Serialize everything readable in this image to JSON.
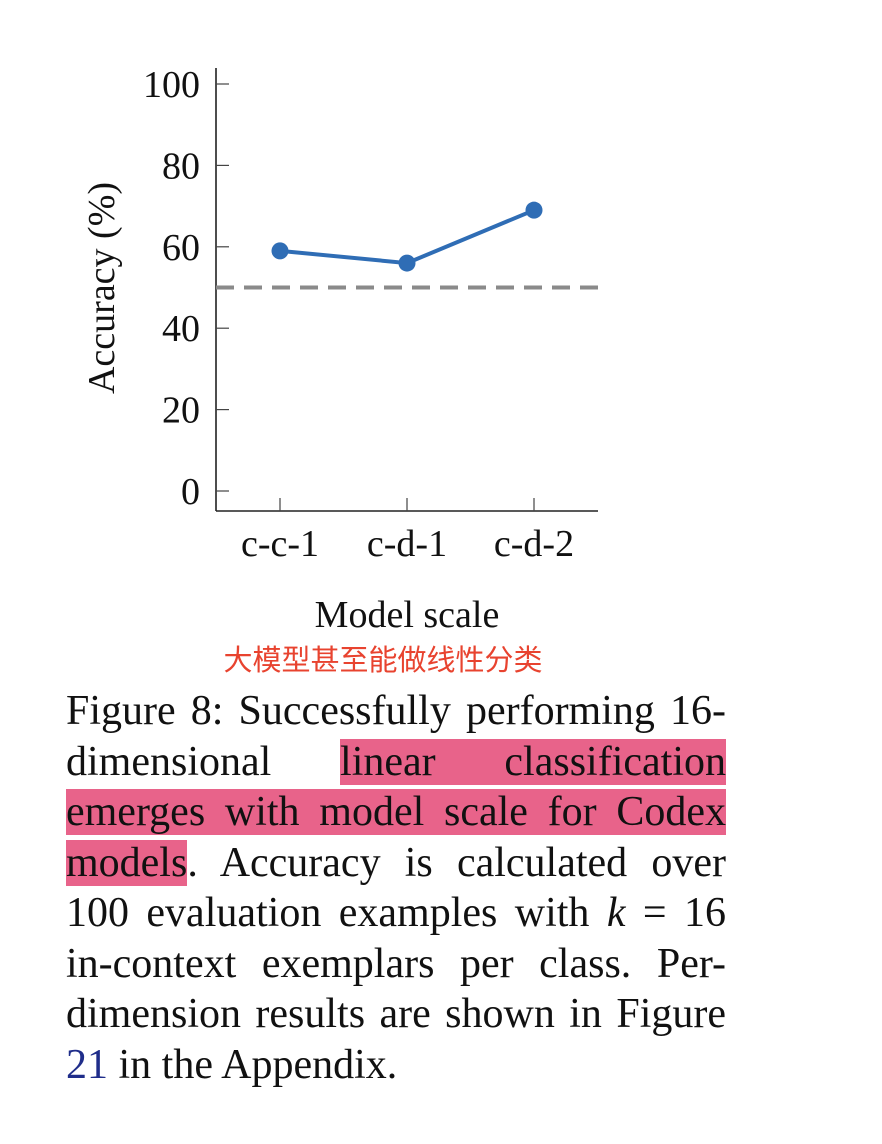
{
  "chart_data": {
    "type": "line",
    "categories": [
      "c-c-1",
      "c-d-1",
      "c-d-2"
    ],
    "series": [
      {
        "values": [
          59,
          56,
          69
        ],
        "color": "#2f6db5"
      }
    ],
    "reference_line": {
      "value": 50,
      "style": "dashed",
      "color": "#8a8a8a"
    },
    "ylabel": "Accuracy (%)",
    "xlabel": "Model scale",
    "ylim": [
      0,
      100
    ],
    "yticks": [
      0,
      20,
      40,
      60,
      80,
      100
    ],
    "grid": false
  },
  "annotation": "大模型甚至能做线性分类",
  "caption": {
    "p1": "Figure 8: Successfully performing 16-dimensional ",
    "highlight": "linear classification emerges with model scale for Codex models",
    "p2": ". Accuracy is calculated over 100 evaluation examples with ",
    "math": "k",
    "p3": " = 16 in-context exemplars per class. Per-dimension results are shown in Figure ",
    "ref": "21",
    "p4": " in the Appendix."
  }
}
